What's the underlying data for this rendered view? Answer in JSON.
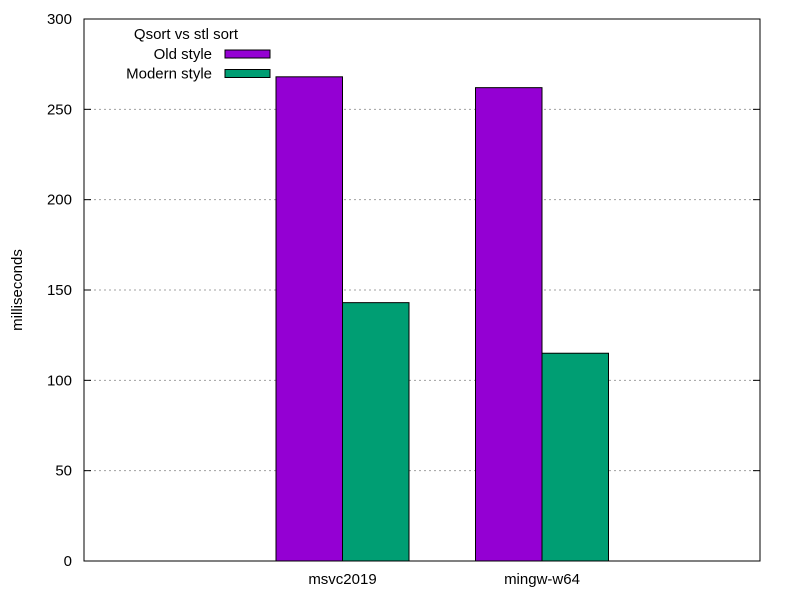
{
  "chart_data": {
    "type": "bar",
    "categories": [
      "msvc2019",
      "mingw-w64"
    ],
    "series": [
      {
        "name": "Old style",
        "values": [
          268,
          262
        ],
        "color": "#9400d3"
      },
      {
        "name": "Modern style",
        "values": [
          143,
          115
        ],
        "color": "#009e73"
      }
    ],
    "ylabel": "milliseconds",
    "ylim": [
      0,
      300
    ],
    "yticks": [
      0,
      50,
      100,
      150,
      200,
      250,
      300
    ],
    "grid": "horizontal dotted",
    "legend": {
      "title": "Qsort vs stl sort",
      "placement": "top-left"
    }
  }
}
